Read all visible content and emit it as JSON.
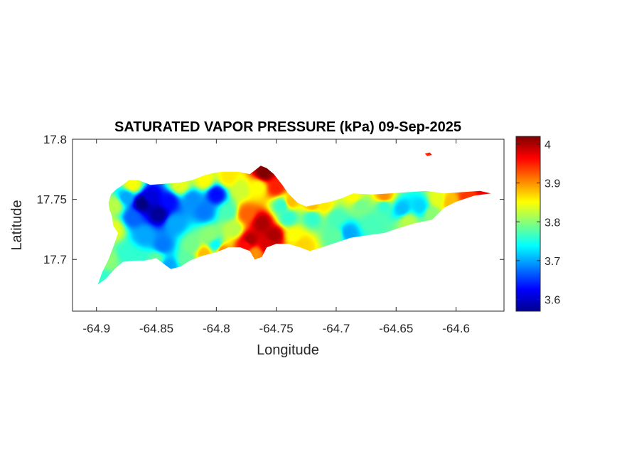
{
  "chart_data": {
    "type": "heatmap",
    "title": "SATURATED VAPOR PRESSURE (kPa) 09-Sep-2025",
    "xlabel": "Longitude",
    "ylabel": "Latitude",
    "xlim": [
      -64.92,
      -64.56
    ],
    "ylim": [
      17.657,
      17.8
    ],
    "x_ticks": [
      -64.9,
      -64.85,
      -64.8,
      -64.75,
      -64.7,
      -64.65,
      -64.6
    ],
    "x_tick_labels": [
      "-64.9",
      "-64.85",
      "-64.8",
      "-64.75",
      "-64.7",
      "-64.65",
      "-64.6"
    ],
    "y_ticks": [
      17.7,
      17.75,
      17.8
    ],
    "y_tick_labels": [
      "17.7",
      "17.75",
      "17.8"
    ],
    "colorbar": {
      "colormap": "jet",
      "range": [
        3.57,
        4.02
      ],
      "ticks": [
        3.6,
        3.7,
        3.8,
        3.9,
        4.0
      ],
      "tick_labels": [
        "3.6",
        "3.7",
        "3.8",
        "3.9",
        "4"
      ]
    },
    "grid": false,
    "outline": [
      [
        -64.899,
        17.679
      ],
      [
        -64.892,
        17.684
      ],
      [
        -64.885,
        17.692
      ],
      [
        -64.878,
        17.698
      ],
      [
        -64.868,
        17.699
      ],
      [
        -64.86,
        17.699
      ],
      [
        -64.85,
        17.701
      ],
      [
        -64.842,
        17.695
      ],
      [
        -64.838,
        17.692
      ],
      [
        -64.83,
        17.694
      ],
      [
        -64.822,
        17.699
      ],
      [
        -64.812,
        17.703
      ],
      [
        -64.8,
        17.706
      ],
      [
        -64.79,
        17.71
      ],
      [
        -64.78,
        17.71
      ],
      [
        -64.772,
        17.707
      ],
      [
        -64.768,
        17.7
      ],
      [
        -64.762,
        17.702
      ],
      [
        -64.758,
        17.71
      ],
      [
        -64.75,
        17.713
      ],
      [
        -64.74,
        17.713
      ],
      [
        -64.73,
        17.71
      ],
      [
        -64.722,
        17.707
      ],
      [
        -64.712,
        17.71
      ],
      [
        -64.7,
        17.714
      ],
      [
        -64.688,
        17.718
      ],
      [
        -64.675,
        17.72
      ],
      [
        -64.66,
        17.722
      ],
      [
        -64.648,
        17.726
      ],
      [
        -64.635,
        17.73
      ],
      [
        -64.62,
        17.733
      ],
      [
        -64.61,
        17.743
      ],
      [
        -64.6,
        17.748
      ],
      [
        -64.585,
        17.753
      ],
      [
        -64.571,
        17.755
      ],
      [
        -64.58,
        17.757
      ],
      [
        -64.595,
        17.756
      ],
      [
        -64.61,
        17.755
      ],
      [
        -64.625,
        17.757
      ],
      [
        -64.64,
        17.756
      ],
      [
        -64.655,
        17.755
      ],
      [
        -64.67,
        17.754
      ],
      [
        -64.686,
        17.755
      ],
      [
        -64.695,
        17.751
      ],
      [
        -64.705,
        17.748
      ],
      [
        -64.715,
        17.746
      ],
      [
        -64.725,
        17.744
      ],
      [
        -64.732,
        17.747
      ],
      [
        -64.74,
        17.755
      ],
      [
        -64.745,
        17.762
      ],
      [
        -64.752,
        17.771
      ],
      [
        -64.758,
        17.776
      ],
      [
        -64.763,
        17.778
      ],
      [
        -64.768,
        17.774
      ],
      [
        -64.772,
        17.771
      ],
      [
        -64.782,
        17.773
      ],
      [
        -64.795,
        17.773
      ],
      [
        -64.802,
        17.772
      ],
      [
        -64.81,
        17.77
      ],
      [
        -64.82,
        17.766
      ],
      [
        -64.83,
        17.764
      ],
      [
        -64.843,
        17.763
      ],
      [
        -64.855,
        17.762
      ],
      [
        -64.865,
        17.766
      ],
      [
        -64.873,
        17.766
      ],
      [
        -64.878,
        17.762
      ],
      [
        -64.884,
        17.758
      ],
      [
        -64.888,
        17.754
      ],
      [
        -64.89,
        17.747
      ],
      [
        -64.889,
        17.741
      ],
      [
        -64.887,
        17.736
      ],
      [
        -64.886,
        17.728
      ],
      [
        -64.882,
        17.722
      ],
      [
        -64.885,
        17.713
      ],
      [
        -64.89,
        17.7
      ],
      [
        -64.895,
        17.69
      ],
      [
        -64.899,
        17.679
      ]
    ],
    "islet": [
      [
        -64.626,
        17.788
      ],
      [
        -64.622,
        17.789
      ],
      [
        -64.62,
        17.787
      ],
      [
        -64.624,
        17.786
      ]
    ],
    "field_points": [
      [
        -64.862,
        17.747,
        3.57
      ],
      [
        -64.848,
        17.738,
        3.58
      ],
      [
        -64.855,
        17.752,
        3.61
      ],
      [
        -64.84,
        17.748,
        3.63
      ],
      [
        -64.87,
        17.735,
        3.67
      ],
      [
        -64.835,
        17.73,
        3.7
      ],
      [
        -64.845,
        17.712,
        3.68
      ],
      [
        -64.86,
        17.72,
        3.7
      ],
      [
        -64.82,
        17.75,
        3.69
      ],
      [
        -64.8,
        17.754,
        3.63
      ],
      [
        -64.81,
        17.74,
        3.68
      ],
      [
        -64.875,
        17.752,
        3.7
      ],
      [
        -64.885,
        17.745,
        3.82
      ],
      [
        -64.885,
        17.725,
        3.84
      ],
      [
        -64.89,
        17.7,
        3.8
      ],
      [
        -64.895,
        17.683,
        3.76
      ],
      [
        -64.875,
        17.705,
        3.76
      ],
      [
        -64.865,
        17.7,
        3.76
      ],
      [
        -64.85,
        17.7,
        3.78
      ],
      [
        -64.84,
        17.695,
        3.7
      ],
      [
        -64.825,
        17.7,
        3.78
      ],
      [
        -64.82,
        17.712,
        3.79
      ],
      [
        -64.805,
        17.72,
        3.8
      ],
      [
        -64.8,
        17.712,
        3.74
      ],
      [
        -64.81,
        17.705,
        3.88
      ],
      [
        -64.795,
        17.708,
        3.9
      ],
      [
        -64.785,
        17.725,
        3.82
      ],
      [
        -64.79,
        17.74,
        3.77
      ],
      [
        -64.78,
        17.758,
        3.83
      ],
      [
        -64.79,
        17.768,
        3.86
      ],
      [
        -64.775,
        17.712,
        3.96
      ],
      [
        -64.772,
        17.716,
        4.0
      ],
      [
        -64.768,
        17.705,
        3.9
      ],
      [
        -64.775,
        17.738,
        3.92
      ],
      [
        -64.762,
        17.73,
        4.0
      ],
      [
        -64.752,
        17.72,
        4.0
      ],
      [
        -64.758,
        17.712,
        3.98
      ],
      [
        -64.765,
        17.76,
        3.85
      ],
      [
        -64.76,
        17.772,
        4.02
      ],
      [
        -64.75,
        17.76,
        3.95
      ],
      [
        -64.745,
        17.745,
        3.76
      ],
      [
        -64.74,
        17.735,
        3.76
      ],
      [
        -64.735,
        17.72,
        3.85
      ],
      [
        -64.728,
        17.712,
        3.87
      ],
      [
        -64.72,
        17.735,
        3.76
      ],
      [
        -64.738,
        17.748,
        3.88
      ],
      [
        -64.71,
        17.745,
        3.86
      ],
      [
        -64.7,
        17.735,
        3.77
      ],
      [
        -64.69,
        17.722,
        3.7
      ],
      [
        -64.7,
        17.72,
        3.78
      ],
      [
        -64.68,
        17.745,
        3.79
      ],
      [
        -64.67,
        17.73,
        3.77
      ],
      [
        -64.66,
        17.745,
        3.76
      ],
      [
        -64.66,
        17.752,
        3.9
      ],
      [
        -64.645,
        17.742,
        3.71
      ],
      [
        -64.63,
        17.744,
        3.72
      ],
      [
        -64.62,
        17.738,
        3.8
      ],
      [
        -64.64,
        17.732,
        3.82
      ],
      [
        -64.615,
        17.75,
        3.84
      ],
      [
        -64.605,
        17.748,
        3.88
      ],
      [
        -64.59,
        17.752,
        3.94
      ],
      [
        -64.575,
        17.755,
        3.97
      ],
      [
        -64.685,
        17.752,
        3.85
      ],
      [
        -64.72,
        17.745,
        3.88
      ],
      [
        -64.81,
        17.766,
        3.85
      ],
      [
        -64.83,
        17.762,
        3.84
      ],
      [
        -64.87,
        17.762,
        3.85
      ],
      [
        -64.623,
        17.787,
        3.95
      ]
    ]
  }
}
